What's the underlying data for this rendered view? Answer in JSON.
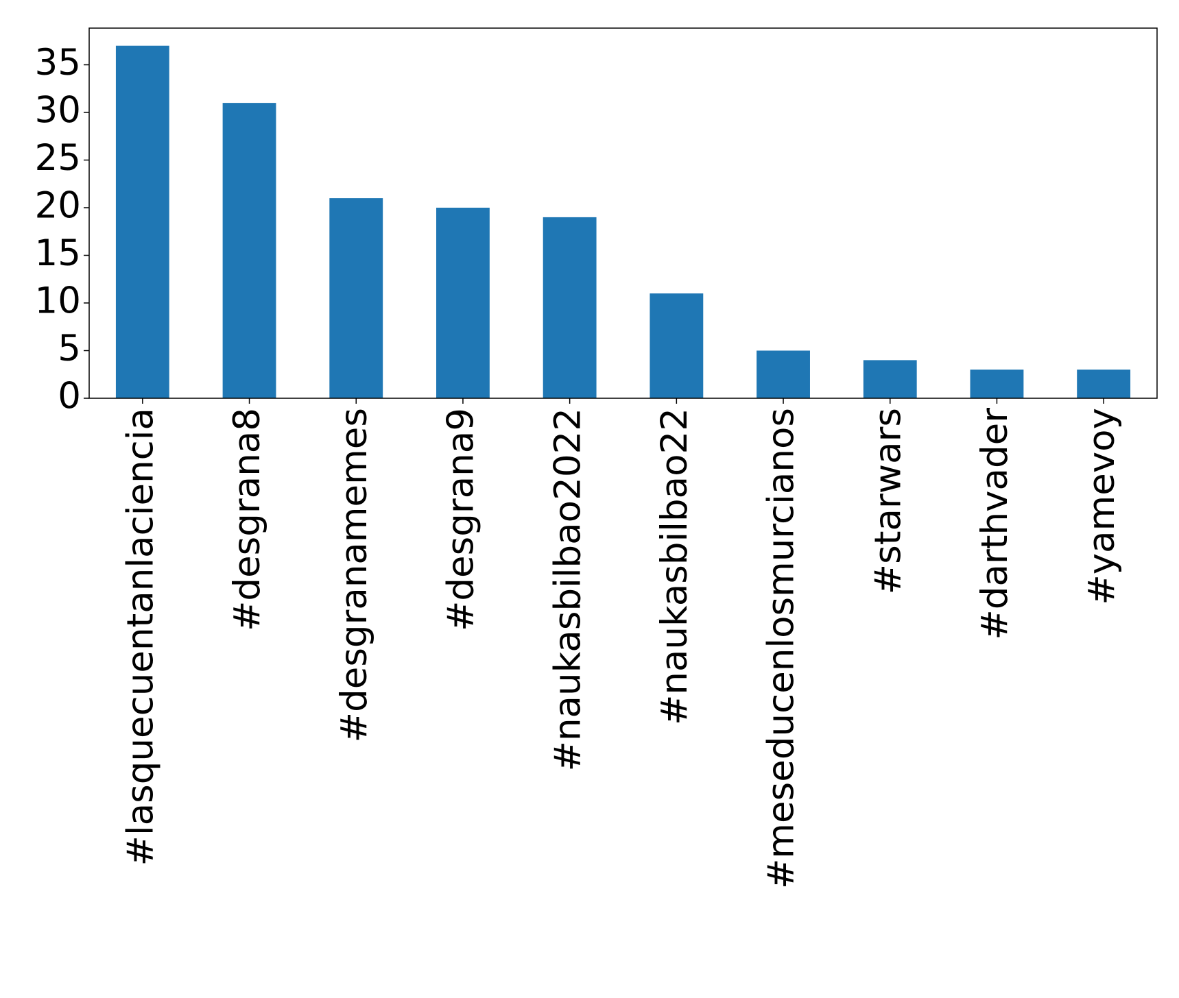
{
  "chart_data": {
    "type": "bar",
    "categories": [
      "#lasquecuentanlaciencia",
      "#desgrana8",
      "#desgranamemes",
      "#desgrana9",
      "#naukasbilbao2022",
      "#naukasbilbao22",
      "#meseducenlosmurcianos",
      "#starwars",
      "#darthvader",
      "#yamevoy"
    ],
    "values": [
      37,
      31,
      21,
      20,
      19,
      11,
      5,
      4,
      3,
      3
    ],
    "color": "#1f77b4",
    "ylim": [
      0,
      38.85
    ],
    "yticks": [
      0,
      5,
      10,
      15,
      20,
      25,
      30,
      35
    ],
    "grid": false
  }
}
